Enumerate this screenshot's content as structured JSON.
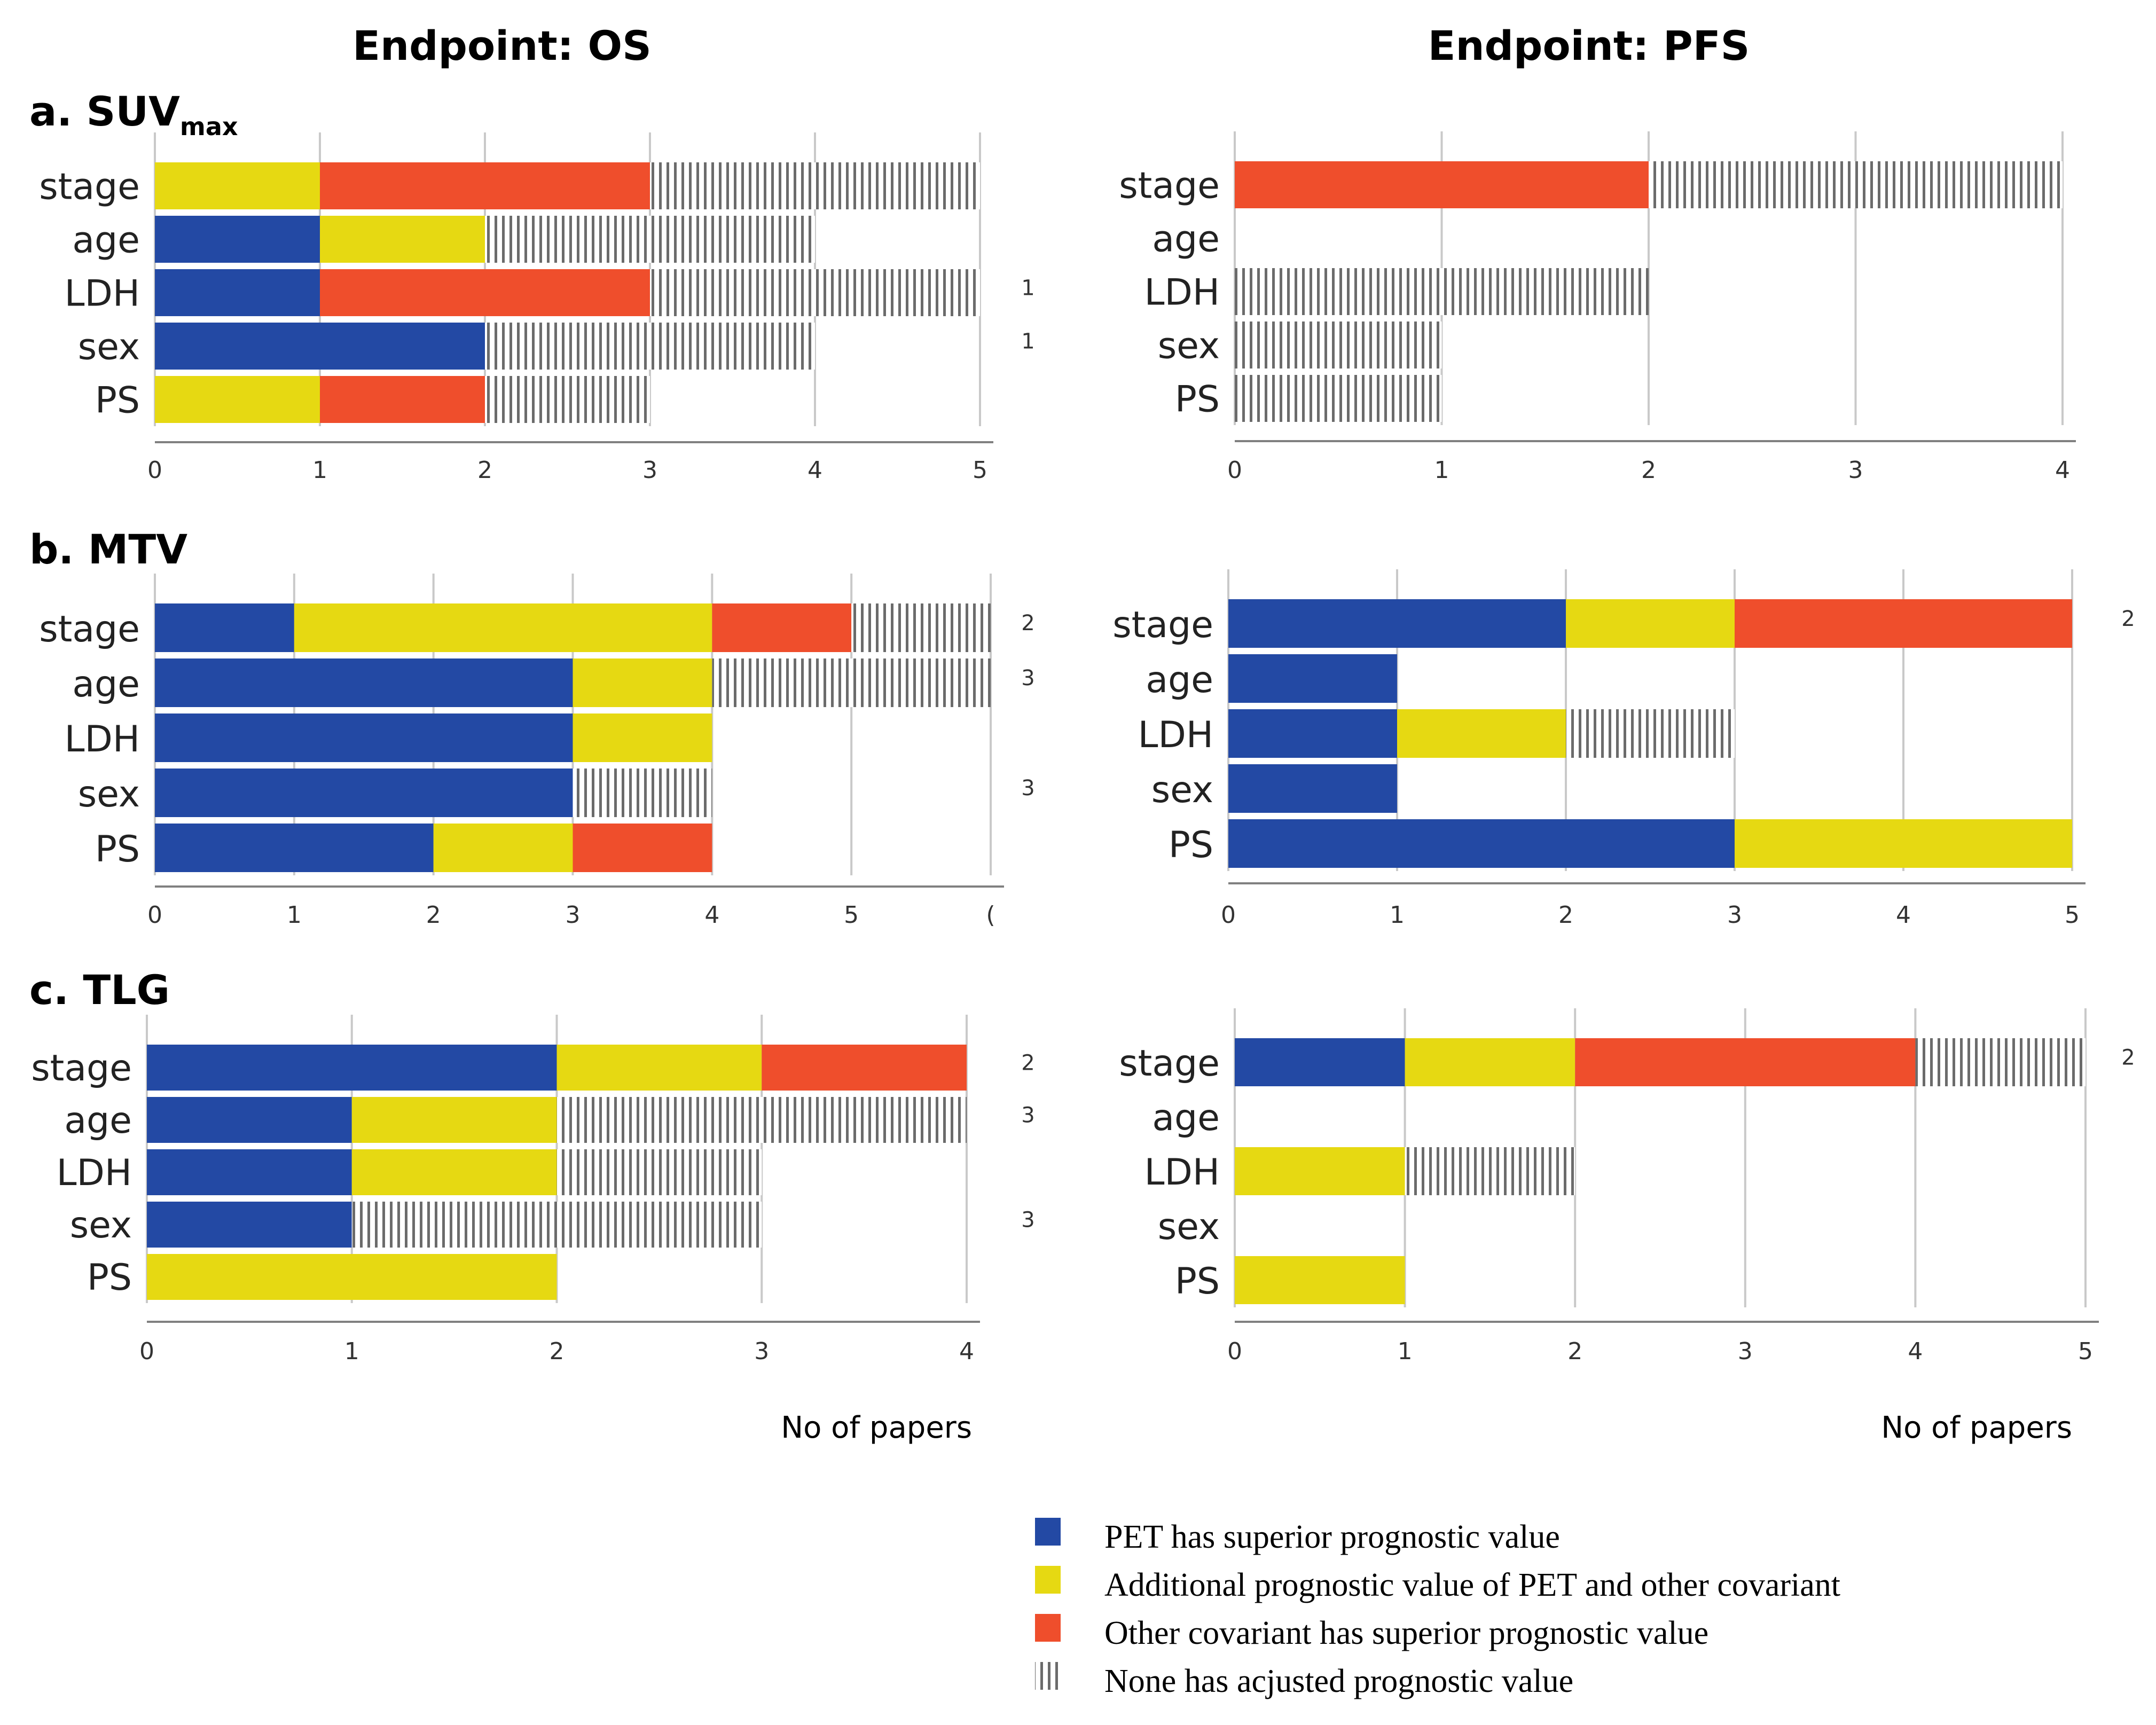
{
  "colors": {
    "blue": "#2349A4",
    "yellow": "#E6D912",
    "red": "#EF4E2C",
    "hatch": "#6B6B6B",
    "grid": "#C9C9C9",
    "axis": "#808080"
  },
  "column_titles": [
    "Endpoint: OS",
    "Endpoint: PFS"
  ],
  "row_titles": [
    {
      "label": "a. SUV",
      "sub": "max"
    },
    {
      "label": "b. MTV",
      "sub": ""
    },
    {
      "label": "c. TLG",
      "sub": ""
    }
  ],
  "xlabel": "No of papers",
  "legend": [
    {
      "key": "pet_superior",
      "label": "PET has superior prognostic value",
      "color_key": "blue"
    },
    {
      "key": "additional",
      "label": "Additional prognostic value of PET and other covariant",
      "color_key": "yellow"
    },
    {
      "key": "other_superior",
      "label": "Other covariant has superior prognostic value",
      "color_key": "red"
    },
    {
      "key": "none",
      "label": "None has acjusted prognostic value",
      "color_key": "hatch"
    }
  ],
  "chart_data": [
    {
      "id": "suvmax-os",
      "type": "bar",
      "stacked": true,
      "orientation": "horizontal",
      "title": "a. SUVmax",
      "endpoint": "Endpoint: OS",
      "categories": [
        "stage",
        "age",
        "LDH",
        "sex",
        "PS"
      ],
      "xlim": [
        0,
        5
      ],
      "xticks": [
        "0",
        "1",
        "2",
        "3",
        "4",
        "5"
      ],
      "series": [
        {
          "name": "PET has superior prognostic value",
          "color_key": "blue",
          "values": [
            0,
            1,
            1,
            2,
            0
          ]
        },
        {
          "name": "Additional prognostic value of PET and other covariant",
          "color_key": "yellow",
          "values": [
            1,
            1,
            0,
            0,
            1
          ]
        },
        {
          "name": "Other covariant has superior prognostic value",
          "color_key": "red",
          "values": [
            2,
            0,
            2,
            0,
            1
          ]
        },
        {
          "name": "None has acjusted prognostic value",
          "color_key": "hatch",
          "values": [
            2,
            2,
            2,
            2,
            1
          ]
        }
      ],
      "annotations": [
        "",
        "",
        "1",
        "1",
        ""
      ]
    },
    {
      "id": "suvmax-pfs",
      "type": "bar",
      "stacked": true,
      "orientation": "horizontal",
      "title": "a. SUVmax",
      "endpoint": "Endpoint: PFS",
      "categories": [
        "stage",
        "age",
        "LDH",
        "sex",
        "PS"
      ],
      "xlim": [
        0,
        4
      ],
      "xticks": [
        "0",
        "1",
        "2",
        "3",
        "4"
      ],
      "series": [
        {
          "name": "PET has superior prognostic value",
          "color_key": "blue",
          "values": [
            0,
            0,
            0,
            0,
            0
          ]
        },
        {
          "name": "Additional prognostic value of PET and other covariant",
          "color_key": "yellow",
          "values": [
            0,
            0,
            0,
            0,
            0
          ]
        },
        {
          "name": "Other covariant has superior prognostic value",
          "color_key": "red",
          "values": [
            2,
            0,
            0,
            0,
            0
          ]
        },
        {
          "name": "None has acjusted prognostic value",
          "color_key": "hatch",
          "values": [
            2,
            0,
            2,
            1,
            1
          ]
        }
      ],
      "annotations": [
        "",
        "",
        "",
        "",
        ""
      ]
    },
    {
      "id": "mtv-os",
      "type": "bar",
      "stacked": true,
      "orientation": "horizontal",
      "title": "b. MTV",
      "endpoint": "Endpoint: OS",
      "categories": [
        "stage",
        "age",
        "LDH",
        "sex",
        "PS"
      ],
      "xlim": [
        0,
        6
      ],
      "xticks": [
        "0",
        "1",
        "2",
        "3",
        "4",
        "5",
        "("
      ],
      "series": [
        {
          "name": "PET has superior prognostic value",
          "color_key": "blue",
          "values": [
            1,
            3,
            3,
            3,
            2
          ]
        },
        {
          "name": "Additional prognostic value of PET and other covariant",
          "color_key": "yellow",
          "values": [
            3,
            1,
            1,
            0,
            1
          ]
        },
        {
          "name": "Other covariant has superior prognostic value",
          "color_key": "red",
          "values": [
            1,
            0,
            0,
            0,
            1
          ]
        },
        {
          "name": "None has acjusted prognostic value",
          "color_key": "hatch",
          "values": [
            1,
            2,
            0,
            1,
            0
          ]
        }
      ],
      "annotations": [
        "2",
        "3",
        "",
        "3",
        ""
      ]
    },
    {
      "id": "mtv-pfs",
      "type": "bar",
      "stacked": true,
      "orientation": "horizontal",
      "title": "b. MTV",
      "endpoint": "Endpoint: PFS",
      "categories": [
        "stage",
        "age",
        "LDH",
        "sex",
        "PS"
      ],
      "xlim": [
        0,
        5
      ],
      "xticks": [
        "0",
        "1",
        "2",
        "3",
        "4",
        "5"
      ],
      "series": [
        {
          "name": "PET has superior prognostic value",
          "color_key": "blue",
          "values": [
            2,
            1,
            1,
            1,
            3
          ]
        },
        {
          "name": "Additional prognostic value of PET and other covariant",
          "color_key": "yellow",
          "values": [
            1,
            0,
            1,
            0,
            2
          ]
        },
        {
          "name": "Other covariant has superior prognostic value",
          "color_key": "red",
          "values": [
            2,
            0,
            0,
            0,
            0
          ]
        },
        {
          "name": "None has acjusted prognostic value",
          "color_key": "hatch",
          "values": [
            0,
            0,
            1,
            0,
            0
          ]
        }
      ],
      "annotations": [
        "2",
        "",
        "",
        "",
        ""
      ]
    },
    {
      "id": "tlg-os",
      "type": "bar",
      "stacked": true,
      "orientation": "horizontal",
      "title": "c. TLG",
      "endpoint": "Endpoint: OS",
      "categories": [
        "stage",
        "age",
        "LDH",
        "sex",
        "PS"
      ],
      "xlim": [
        0,
        4
      ],
      "xticks": [
        "0",
        "1",
        "2",
        "3",
        "4"
      ],
      "series": [
        {
          "name": "PET has superior prognostic value",
          "color_key": "blue",
          "values": [
            2,
            1,
            1,
            1,
            0
          ]
        },
        {
          "name": "Additional prognostic value of PET and other covariant",
          "color_key": "yellow",
          "values": [
            1,
            1,
            1,
            0,
            2
          ]
        },
        {
          "name": "Other covariant has superior prognostic value",
          "color_key": "red",
          "values": [
            1,
            0,
            0,
            0,
            0
          ]
        },
        {
          "name": "None has acjusted prognostic value",
          "color_key": "hatch",
          "values": [
            0,
            2,
            1,
            2,
            0
          ]
        }
      ],
      "annotations": [
        "2",
        "3",
        "",
        "3",
        ""
      ]
    },
    {
      "id": "tlg-pfs",
      "type": "bar",
      "stacked": true,
      "orientation": "horizontal",
      "title": "c. TLG",
      "endpoint": "Endpoint: PFS",
      "categories": [
        "stage",
        "age",
        "LDH",
        "sex",
        "PS"
      ],
      "xlim": [
        0,
        5
      ],
      "xticks": [
        "0",
        "1",
        "2",
        "3",
        "4",
        "5"
      ],
      "series": [
        {
          "name": "PET has superior prognostic value",
          "color_key": "blue",
          "values": [
            1,
            0,
            0,
            0,
            0
          ]
        },
        {
          "name": "Additional prognostic value of PET and other covariant",
          "color_key": "yellow",
          "values": [
            1,
            0,
            1,
            0,
            1
          ]
        },
        {
          "name": "Other covariant has superior prognostic value",
          "color_key": "red",
          "values": [
            2,
            0,
            0,
            0,
            0
          ]
        },
        {
          "name": "None has acjusted prognostic value",
          "color_key": "hatch",
          "values": [
            1,
            0,
            1,
            0,
            0
          ]
        }
      ],
      "annotations": [
        "2",
        "",
        "",
        "",
        ""
      ]
    }
  ]
}
